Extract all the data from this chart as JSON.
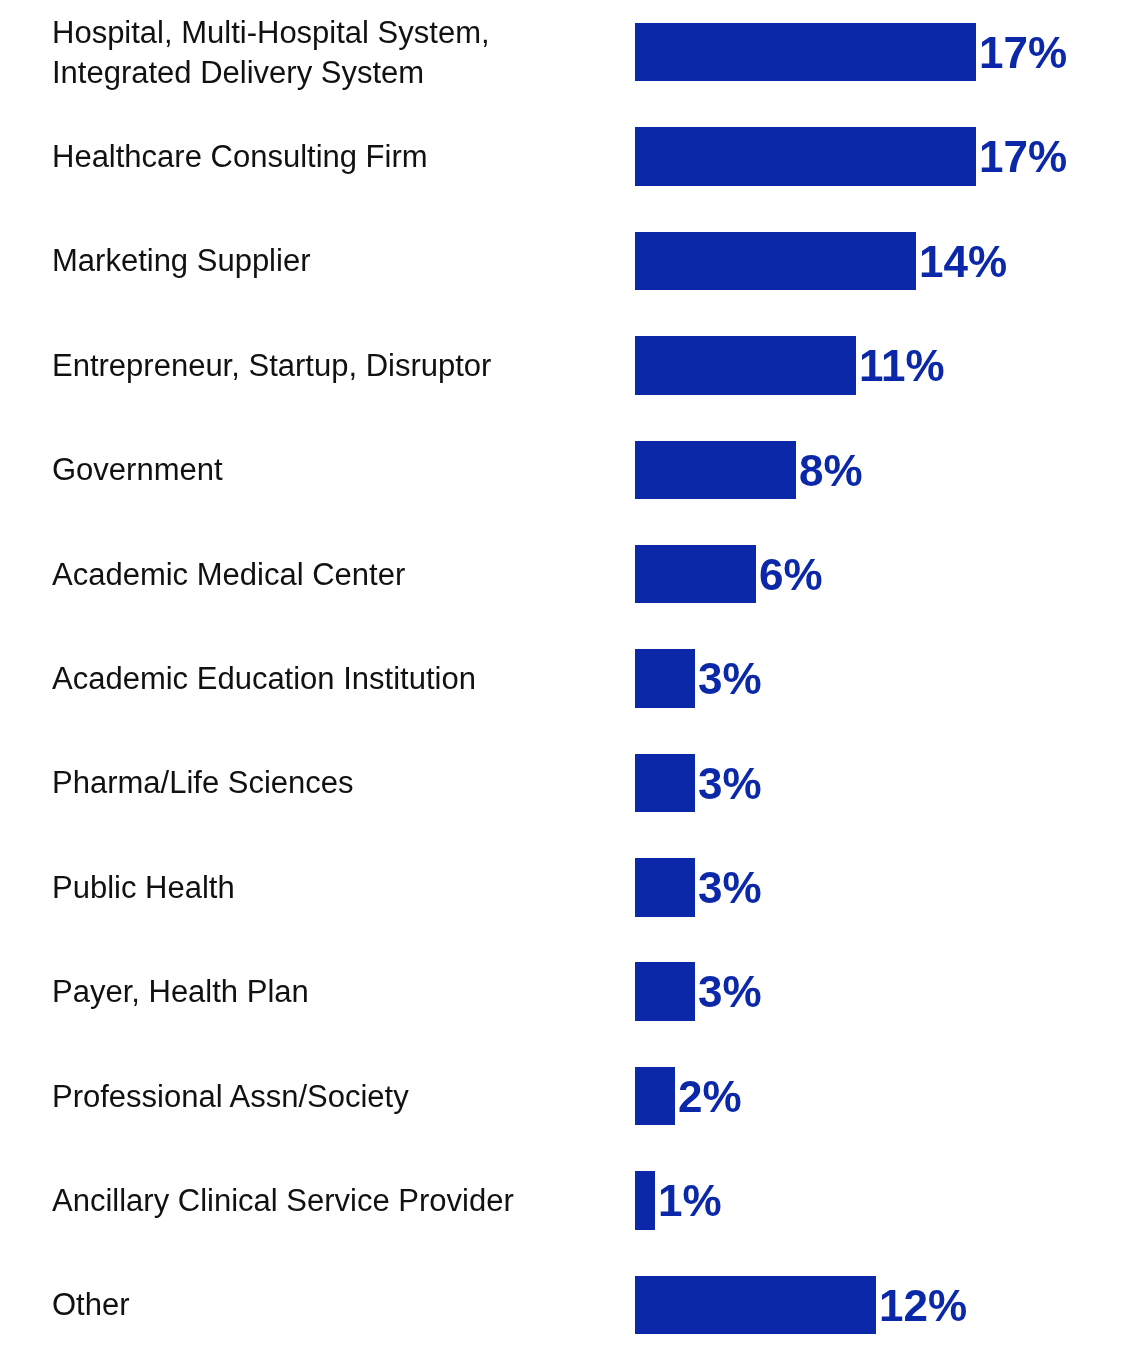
{
  "chart_data": {
    "type": "bar",
    "orientation": "horizontal",
    "categories": [
      "Hospital, Multi-Hospital System,\nIntegrated Delivery System",
      "Healthcare Consulting Firm",
      "Marketing Supplier",
      "Entrepreneur, Startup, Disruptor",
      "Government",
      "Academic Medical Center",
      "Academic Education Institution",
      "Pharma/Life Sciences",
      "Public Health",
      "Payer, Health Plan",
      "Professional Assn/Society",
      "Ancillary Clinical Service Provider",
      "Other"
    ],
    "values": [
      17,
      17,
      14,
      11,
      8,
      6,
      3,
      3,
      3,
      3,
      2,
      1,
      12
    ],
    "value_labels": [
      "17%",
      "17%",
      "14%",
      "11%",
      "8%",
      "6%",
      "3%",
      "3%",
      "3%",
      "3%",
      "2%",
      "1%",
      "12%"
    ],
    "color": "#0a28a8",
    "legend": false
  }
}
